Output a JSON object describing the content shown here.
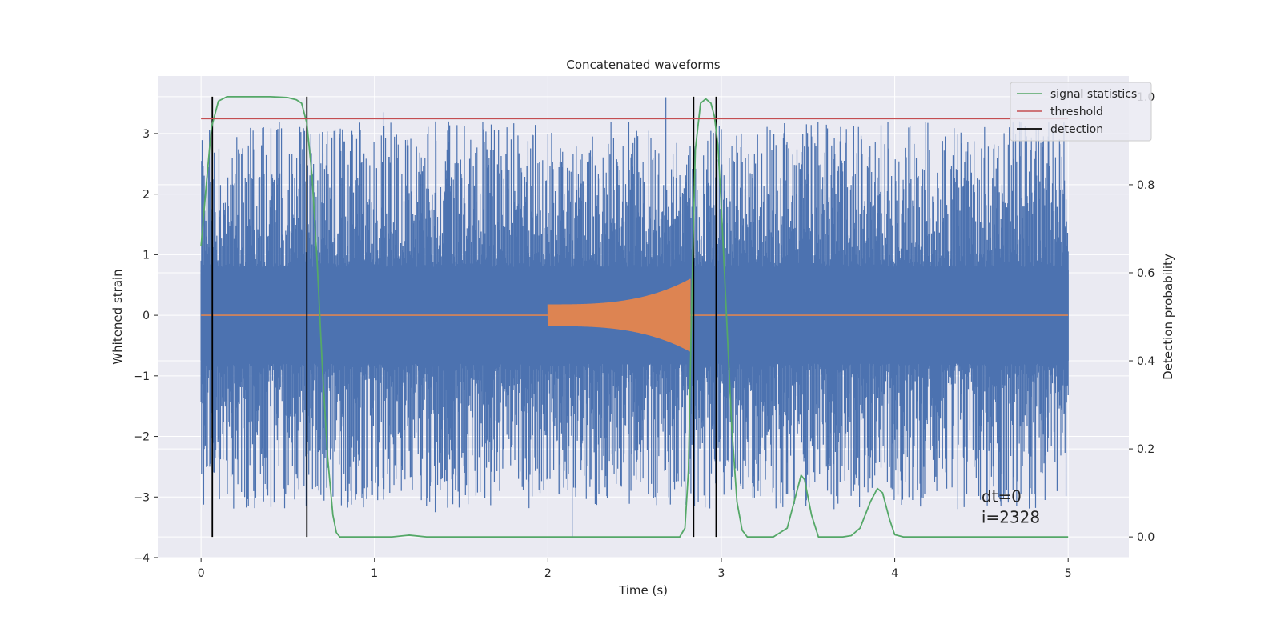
{
  "chart_data": {
    "type": "line",
    "title": "Concatenated waveforms",
    "xlabel": "Time (s)",
    "ylabel": "Whitened strain",
    "y2label": "Detection probability",
    "xlim": [
      -0.25,
      5.35
    ],
    "ylim": [
      -4,
      3.95
    ],
    "y2lim": [
      -0.047,
      1.047
    ],
    "xticks": [
      0,
      1,
      2,
      3,
      4,
      5
    ],
    "yticks": [
      -4,
      -3,
      -2,
      -1,
      0,
      1,
      2,
      3
    ],
    "y2ticks": [
      0.0,
      0.2,
      0.4,
      0.6,
      0.8,
      1.0
    ],
    "grid": true,
    "legend_position": "top-right",
    "annotations": [
      "dt=0",
      "i=2328"
    ],
    "annotation_position": {
      "x": 4.5,
      "y": -3.0
    },
    "colors": {
      "strain": "#4c72b0",
      "waveform": "#dd8452",
      "signal": "#55a868",
      "threshold": "#c44e52",
      "detection": "#000000",
      "background": "#eaeaf2",
      "grid": "#ffffff"
    },
    "series": [
      {
        "name": "signal statistics",
        "axis": "right",
        "x": [
          0.0,
          0.03,
          0.06,
          0.1,
          0.15,
          0.2,
          0.3,
          0.4,
          0.5,
          0.55,
          0.58,
          0.61,
          0.64,
          0.67,
          0.7,
          0.73,
          0.76,
          0.78,
          0.8,
          0.85,
          1.0,
          1.1,
          1.2,
          1.3,
          1.6,
          2.0,
          2.4,
          2.7,
          2.76,
          2.79,
          2.81,
          2.83,
          2.85,
          2.88,
          2.91,
          2.94,
          2.96,
          2.98,
          3.0,
          3.03,
          3.06,
          3.09,
          3.12,
          3.15,
          3.2,
          3.3,
          3.38,
          3.42,
          3.46,
          3.48,
          3.52,
          3.56,
          3.6,
          3.7,
          3.75,
          3.8,
          3.86,
          3.9,
          3.93,
          3.97,
          4.0,
          4.05,
          4.2,
          4.5,
          4.7,
          5.0
        ],
        "values": [
          0.66,
          0.8,
          0.93,
          0.99,
          1.0,
          1.0,
          1.0,
          1.0,
          0.998,
          0.993,
          0.985,
          0.94,
          0.82,
          0.62,
          0.38,
          0.18,
          0.05,
          0.01,
          0.0,
          0.0,
          0.0,
          0.0,
          0.004,
          0.0,
          0.0,
          0.0,
          0.0,
          0.0,
          0.0,
          0.02,
          0.15,
          0.55,
          0.88,
          0.985,
          0.995,
          0.985,
          0.955,
          0.89,
          0.75,
          0.5,
          0.25,
          0.08,
          0.015,
          0.0,
          0.0,
          0.0,
          0.02,
          0.08,
          0.14,
          0.13,
          0.05,
          0.0,
          0.0,
          0.0,
          0.003,
          0.02,
          0.08,
          0.11,
          0.1,
          0.04,
          0.005,
          0.0,
          0.0,
          0.0,
          0.0,
          0.0
        ]
      },
      {
        "name": "threshold",
        "axis": "right",
        "x": [
          0.0,
          5.0
        ],
        "values": [
          0.95,
          0.95
        ]
      },
      {
        "name": "detection",
        "axis": "right",
        "type": "vlines",
        "x": [
          0.065,
          0.61,
          2.84,
          2.97
        ],
        "range": [
          0.0,
          1.0
        ]
      },
      {
        "axis": "left",
        "type": "noise",
        "x_range": [
          0.0,
          5.0
        ],
        "band": 0.75,
        "peak_min": -3.65,
        "peak_max": 3.6
      },
      {
        "axis": "left",
        "type": "chirp",
        "x_range": [
          2.0,
          2.82
        ],
        "amplitude_start": 0.18,
        "amplitude_end": 0.6
      }
    ],
    "legend": [
      "signal statistics",
      "threshold",
      "detection"
    ]
  }
}
